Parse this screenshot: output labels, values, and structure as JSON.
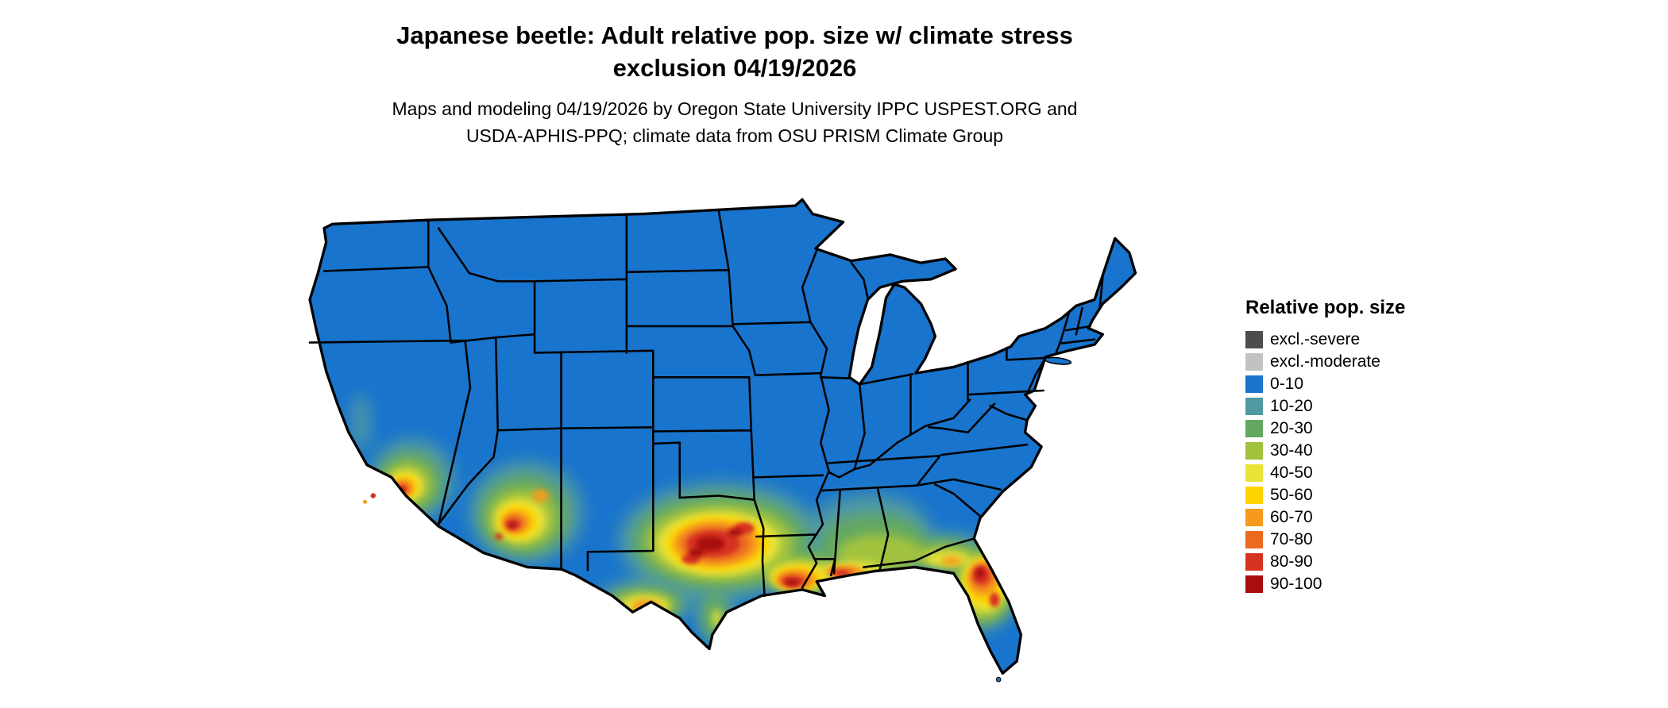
{
  "title": {
    "line1": "Japanese beetle: Adult relative pop. size w/ climate stress",
    "line2": "exclusion 04/19/2026"
  },
  "subtitle": {
    "line1": "Maps and modeling 04/19/2026 by Oregon State University IPPC USPEST.ORG and",
    "line2": "USDA-APHIS-PPQ; climate data from OSU PRISM Climate Group"
  },
  "legend": {
    "title": "Relative pop. size",
    "items": [
      {
        "label": "excl.-severe",
        "color": "#4d4d4d"
      },
      {
        "label": "excl.-moderate",
        "color": "#c2c2c2"
      },
      {
        "label": "0-10",
        "color": "#1874cd"
      },
      {
        "label": "10-20",
        "color": "#4f99a3"
      },
      {
        "label": "20-30",
        "color": "#63a862"
      },
      {
        "label": "30-40",
        "color": "#a2c23e"
      },
      {
        "label": "40-50",
        "color": "#e8e337"
      },
      {
        "label": "50-60",
        "color": "#ffd300"
      },
      {
        "label": "60-70",
        "color": "#f69a1d"
      },
      {
        "label": "70-80",
        "color": "#ea6a20"
      },
      {
        "label": "80-90",
        "color": "#d63222"
      },
      {
        "label": "90-100",
        "color": "#a90d0d"
      }
    ]
  },
  "map": {
    "base_level": "0-10",
    "base_color": "#1874cd",
    "border_color": "#000000",
    "background": "#ffffff",
    "region": "Contiguous United States",
    "high_population_regions": [
      "southern-california",
      "southern-arizona",
      "central-and-east-texas",
      "rio-grande-border-texas",
      "gulf-coast-louisiana-mississippi-alabama",
      "southern-georgia",
      "northern-and-central-florida"
    ],
    "low_population_note": "Remainder of the contiguous US shown as 0-10 (blue)"
  }
}
